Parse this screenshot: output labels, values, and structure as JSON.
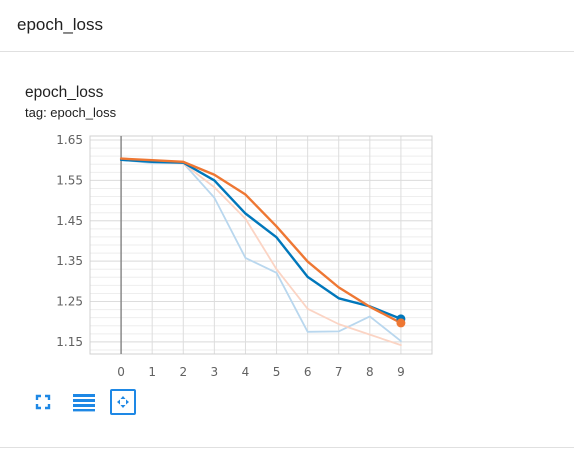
{
  "header": {
    "title": "epoch_loss"
  },
  "card": {
    "title": "epoch_loss",
    "tag": "tag: epoch_loss"
  },
  "toolbar": {
    "fullscreen_icon": "expand-icon",
    "log_scale_icon": "lines-icon",
    "fit_domain_icon": "fit-domain-icon"
  },
  "colors": {
    "series_blue": "#0077bb",
    "series_orange": "#ee7733",
    "series_blue_raw": "#b9d7ee",
    "series_orange_raw": "#fbd4c4",
    "grid": "#dddddd",
    "toolbar_icon": "#1e88e5"
  },
  "chart_data": {
    "type": "line",
    "title": "",
    "xlabel": "",
    "ylabel": "",
    "x": [
      0,
      1,
      2,
      3,
      4,
      5,
      6,
      7,
      8,
      9
    ],
    "xlim": [
      -1,
      10
    ],
    "ylim": [
      1.12,
      1.66
    ],
    "yticks": [
      1.65,
      1.55,
      1.45,
      1.35,
      1.25,
      1.15
    ],
    "xticks": [
      0,
      1,
      2,
      3,
      4,
      5,
      6,
      7,
      8,
      9
    ],
    "grid": true,
    "series": [
      {
        "color": "#0077bb",
        "smoothed": true,
        "values": [
          1.601,
          1.596,
          1.594,
          1.55,
          1.468,
          1.409,
          1.311,
          1.258,
          1.238,
          1.207
        ]
      },
      {
        "color": "#ee7733",
        "smoothed": true,
        "values": [
          1.604,
          1.6,
          1.596,
          1.564,
          1.515,
          1.436,
          1.349,
          1.285,
          1.237,
          1.197
        ]
      },
      {
        "color": "#b9d7ee",
        "smoothed": false,
        "values": [
          1.601,
          1.593,
          1.593,
          1.507,
          1.358,
          1.321,
          1.175,
          1.176,
          1.213,
          1.152
        ]
      },
      {
        "color": "#fbd4c4",
        "smoothed": false,
        "values": [
          1.604,
          1.596,
          1.592,
          1.533,
          1.455,
          1.33,
          1.232,
          1.194,
          1.168,
          1.142
        ]
      }
    ]
  }
}
